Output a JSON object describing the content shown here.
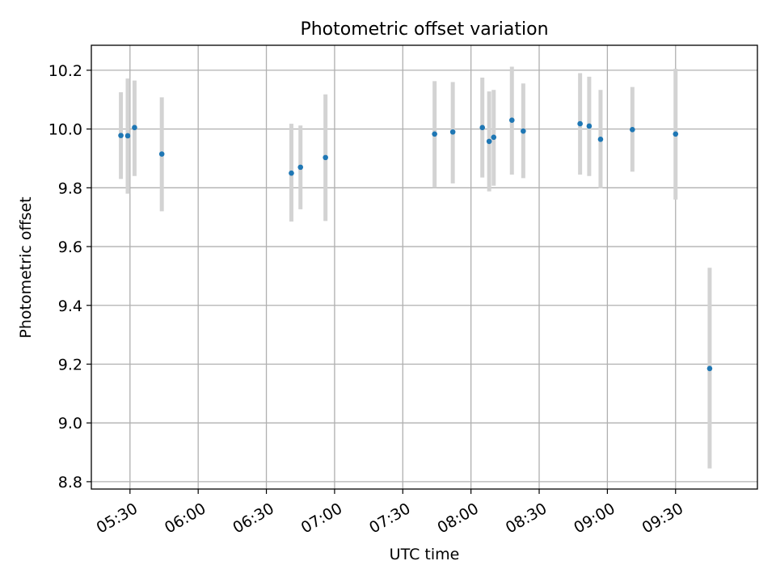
{
  "chart_data": {
    "type": "scatter",
    "title": "Photometric offset variation",
    "xlabel": "UTC time",
    "ylabel": "Photometric offset",
    "grid": true,
    "legend": "none",
    "xlim": [
      "05:13",
      "10:06"
    ],
    "ylim": [
      8.775,
      10.285
    ],
    "x_ticks": [
      "05:30",
      "06:00",
      "06:30",
      "07:00",
      "07:30",
      "08:00",
      "08:30",
      "09:00",
      "09:30"
    ],
    "y_ticks": [
      "8.8",
      "9.0",
      "9.2",
      "9.4",
      "9.6",
      "9.8",
      "10.0",
      "10.2"
    ],
    "colors": {
      "point": "#1f77b4",
      "errorbar": "#d3d3d3",
      "grid": "#b0b0b0"
    },
    "series": [
      {
        "points": [
          {
            "x": "05:26",
            "y": 9.978,
            "err_low": 9.83,
            "err_high": 10.125
          },
          {
            "x": "05:29",
            "y": 9.977,
            "err_low": 9.78,
            "err_high": 10.172
          },
          {
            "x": "05:32",
            "y": 10.005,
            "err_low": 9.84,
            "err_high": 10.165
          },
          {
            "x": "05:44",
            "y": 9.915,
            "err_low": 9.72,
            "err_high": 10.108
          },
          {
            "x": "06:41",
            "y": 9.85,
            "err_low": 9.685,
            "err_high": 10.018
          },
          {
            "x": "06:45",
            "y": 9.87,
            "err_low": 9.727,
            "err_high": 10.012
          },
          {
            "x": "06:56",
            "y": 9.903,
            "err_low": 9.687,
            "err_high": 10.118
          },
          {
            "x": "07:44",
            "y": 9.983,
            "err_low": 9.8,
            "err_high": 10.163
          },
          {
            "x": "07:52",
            "y": 9.99,
            "err_low": 9.815,
            "err_high": 10.16
          },
          {
            "x": "08:05",
            "y": 10.005,
            "err_low": 9.835,
            "err_high": 10.175
          },
          {
            "x": "08:08",
            "y": 9.958,
            "err_low": 9.788,
            "err_high": 10.128
          },
          {
            "x": "08:10",
            "y": 9.972,
            "err_low": 9.807,
            "err_high": 10.133
          },
          {
            "x": "08:18",
            "y": 10.03,
            "err_low": 9.845,
            "err_high": 10.212
          },
          {
            "x": "08:23",
            "y": 9.993,
            "err_low": 9.833,
            "err_high": 10.155
          },
          {
            "x": "08:48",
            "y": 10.018,
            "err_low": 9.845,
            "err_high": 10.19
          },
          {
            "x": "08:52",
            "y": 10.01,
            "err_low": 9.84,
            "err_high": 10.178
          },
          {
            "x": "08:57",
            "y": 9.965,
            "err_low": 9.798,
            "err_high": 10.133
          },
          {
            "x": "09:11",
            "y": 9.998,
            "err_low": 9.855,
            "err_high": 10.143
          },
          {
            "x": "09:30",
            "y": 9.983,
            "err_low": 9.76,
            "err_high": 10.205
          },
          {
            "x": "09:45",
            "y": 9.185,
            "err_low": 8.845,
            "err_high": 9.528
          }
        ]
      }
    ]
  }
}
